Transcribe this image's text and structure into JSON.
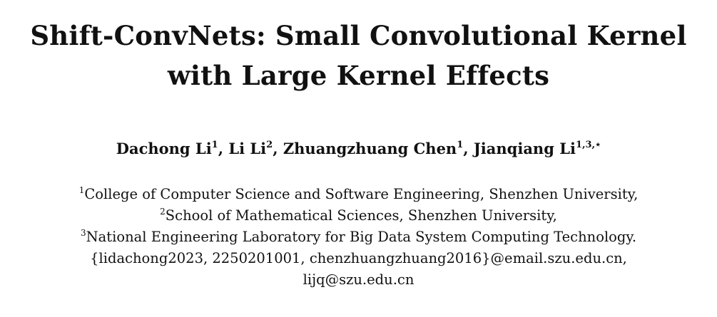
{
  "title": {
    "line1": "Shift-ConvNets: Small Convolutional Kernel",
    "line2": "with Large Kernel Effects"
  },
  "authors": [
    {
      "name": "Dachong Li",
      "marks": "1",
      "sep": ", "
    },
    {
      "name": "Li Li",
      "marks": "2",
      "sep": ", "
    },
    {
      "name": "Zhuangzhuang Chen",
      "marks": "1",
      "sep": ", "
    },
    {
      "name": "Jianqiang Li",
      "marks": "1,3,⋆",
      "sep": ""
    }
  ],
  "affiliations": [
    {
      "mark": "1",
      "text": "College of Computer Science and Software Engineering, Shenzhen University,"
    },
    {
      "mark": "2",
      "text": "School of Mathematical Sciences, Shenzhen University,"
    },
    {
      "mark": "3",
      "text": "National Engineering Laboratory for Big Data System Computing Technology."
    }
  ],
  "emails": {
    "line1": "{lidachong2023, 2250201001, chenzhuangzhuang2016}@email.szu.edu.cn,",
    "line2": "lijq@szu.edu.cn"
  }
}
